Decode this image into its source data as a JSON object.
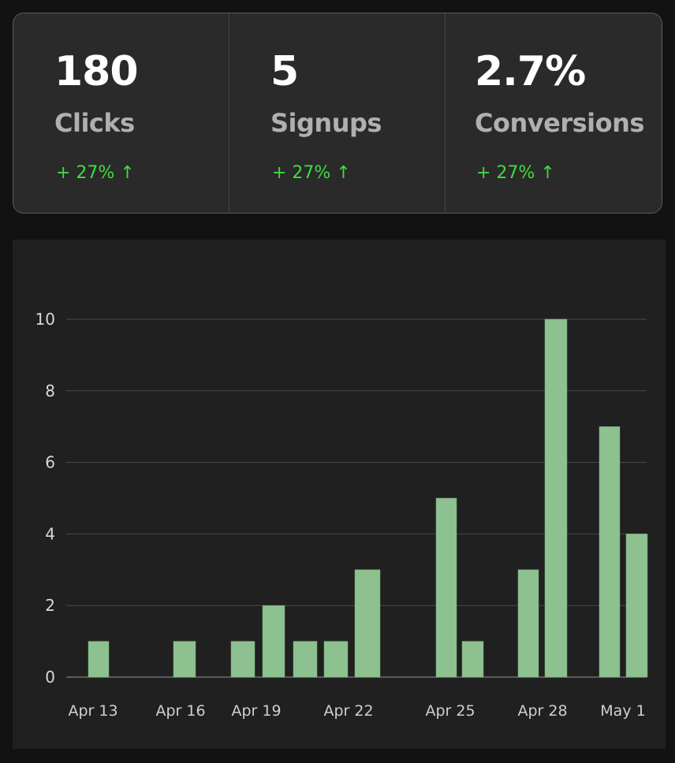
{
  "stats": [
    {
      "value": "180",
      "label": "Clicks",
      "change": "+ 27% ↑"
    },
    {
      "value": "5",
      "label": "Signups",
      "change": "+ 27% ↑"
    },
    {
      "value": "2.7%",
      "label": "Conversions",
      "change": "+ 27% ↑"
    }
  ],
  "colors": {
    "positive": "#3edc3e",
    "bar": "#8dc18f",
    "grid": "#4a4a4a"
  },
  "chart_data": {
    "type": "bar",
    "title": "",
    "xlabel": "",
    "ylabel": "",
    "ylim": [
      0,
      10
    ],
    "yticks": [
      0,
      2,
      4,
      6,
      8,
      10
    ],
    "xtick_labels": [
      "Apr 13",
      "Apr 16",
      "Apr 19",
      "Apr 22",
      "Apr 25",
      "Apr 28",
      "May 1"
    ],
    "grid": true,
    "values": [
      1,
      1,
      1,
      2,
      1,
      1,
      3,
      5,
      1,
      3,
      10,
      7,
      4
    ]
  }
}
